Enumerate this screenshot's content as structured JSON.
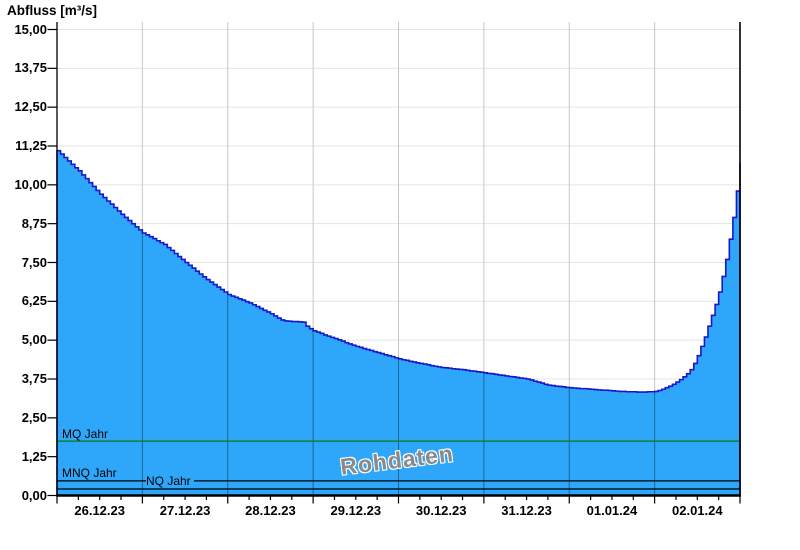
{
  "title": "Abfluss [m³/s]",
  "watermark": "Rohdaten",
  "colors": {
    "area_fill": "#2ea6fa",
    "area_outline": "#1717c9",
    "mq_line_green": "#0a7a0a",
    "mnq_line": "#000000",
    "nq_line": "#000000",
    "axis": "#000000",
    "grid_horizontal": "#e4e4e4",
    "grid_vertical": "#c8c8c8",
    "grid_vertical_in_area": "rgba(8,48,80,0.55)",
    "watermark_text": "#8a8a8a"
  },
  "chart_data": {
    "type": "area",
    "title": "Abfluss [m³/s]",
    "ylabel": "Abfluss [m³/s]",
    "xlabel": "",
    "x_start": "26.12.23 00:00",
    "x_end": "02.01.24 24:00",
    "x_step_hours": 1,
    "x_minor_tick_hours": 6,
    "x_major_tick_hours": 24,
    "grid": true,
    "legend_position": "none",
    "ylim": [
      0,
      15.25
    ],
    "y_tick_values": [
      15,
      13.75,
      12.5,
      11.25,
      10,
      8.75,
      7.5,
      6.25,
      5,
      3.75,
      2.5,
      1.25,
      0
    ],
    "y_tick_labels": [
      "15,00",
      "13,75",
      "12,50",
      "11,25",
      "10,00",
      "8,75",
      "7,50",
      "6,25",
      "5,00",
      "3,75",
      "2,50",
      "1,25",
      "0,00"
    ],
    "x_tick_labels": [
      "26.12.23",
      "27.12.23",
      "28.12.23",
      "29.12.23",
      "30.12.23",
      "31.12.23",
      "01.01.24",
      "02.01.24"
    ],
    "reference_lines": [
      {
        "label": "MQ Jahr",
        "value": 1.75,
        "color": "#0a7a0a"
      },
      {
        "label": "MNQ Jahr",
        "value": 0.47,
        "color": "#000000"
      },
      {
        "label": "NQ Jahr",
        "value": 0.21,
        "color": "#000000"
      }
    ],
    "series_name": "Rohdaten (Abfluss, stündlich)",
    "values": [
      11.1,
      10.99,
      10.88,
      10.77,
      10.66,
      10.55,
      10.45,
      10.32,
      10.2,
      10.07,
      9.95,
      9.82,
      9.7,
      9.59,
      9.48,
      9.38,
      9.27,
      9.16,
      9.05,
      8.95,
      8.85,
      8.75,
      8.65,
      8.55,
      8.45,
      8.39,
      8.33,
      8.27,
      8.2,
      8.14,
      8.08,
      7.98,
      7.89,
      7.79,
      7.69,
      7.6,
      7.5,
      7.41,
      7.32,
      7.22,
      7.13,
      7.04,
      6.95,
      6.87,
      6.79,
      6.71,
      6.63,
      6.55,
      6.47,
      6.42,
      6.38,
      6.33,
      6.29,
      6.24,
      6.2,
      6.14,
      6.08,
      6.02,
      5.96,
      5.91,
      5.85,
      5.78,
      5.71,
      5.65,
      5.62,
      5.61,
      5.6,
      5.6,
      5.59,
      5.58,
      5.45,
      5.37,
      5.3,
      5.26,
      5.22,
      5.17,
      5.13,
      5.09,
      5.05,
      5.01,
      4.97,
      4.92,
      4.88,
      4.84,
      4.8,
      4.77,
      4.73,
      4.7,
      4.67,
      4.63,
      4.6,
      4.57,
      4.53,
      4.5,
      4.47,
      4.43,
      4.4,
      4.37,
      4.35,
      4.32,
      4.3,
      4.27,
      4.25,
      4.23,
      4.21,
      4.18,
      4.16,
      4.14,
      4.12,
      4.11,
      4.1,
      4.08,
      4.07,
      4.06,
      4.05,
      4.03,
      4.01,
      4.0,
      3.98,
      3.97,
      3.95,
      3.93,
      3.92,
      3.9,
      3.88,
      3.87,
      3.85,
      3.83,
      3.82,
      3.8,
      3.78,
      3.77,
      3.75,
      3.72,
      3.68,
      3.65,
      3.62,
      3.58,
      3.55,
      3.54,
      3.52,
      3.51,
      3.5,
      3.48,
      3.47,
      3.46,
      3.45,
      3.44,
      3.44,
      3.43,
      3.42,
      3.41,
      3.4,
      3.39,
      3.39,
      3.38,
      3.37,
      3.36,
      3.35,
      3.35,
      3.34,
      3.34,
      3.34,
      3.33,
      3.33,
      3.33,
      3.34,
      3.34,
      3.35,
      3.38,
      3.42,
      3.47,
      3.52,
      3.58,
      3.65,
      3.73,
      3.82,
      3.92,
      4.05,
      4.25,
      4.5,
      4.8,
      5.1,
      5.45,
      5.8,
      6.15,
      6.55,
      7.05,
      7.6,
      8.25,
      8.95,
      9.8,
      10.7
    ]
  }
}
